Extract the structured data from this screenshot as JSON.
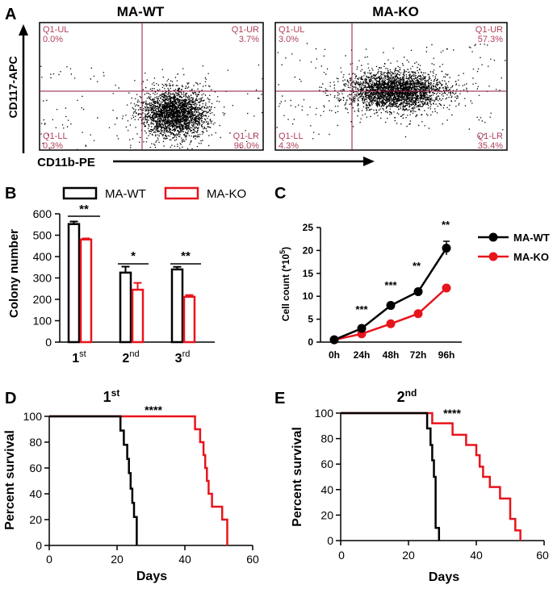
{
  "panel_letters": [
    "A",
    "B",
    "C",
    "D",
    "E"
  ],
  "colors": {
    "wt": "#000000",
    "ko": "#e8141c",
    "gate": "#8b1a3a",
    "quad_text": "#b0405a"
  },
  "chart_data": [
    {
      "panel": "A",
      "type": "scatter",
      "subtype": "flow-cytometry",
      "xlabel": "CD11b-PE",
      "ylabel": "CD117-APC",
      "plots": [
        {
          "title": "MA-WT",
          "quadrants": {
            "UL": {
              "label": "Q1-UL",
              "value": "0.0%"
            },
            "UR": {
              "label": "Q1-UR",
              "value": "3.7%"
            },
            "LL": {
              "label": "Q1-LL",
              "value": "0.3%"
            },
            "LR": {
              "label": "Q1-LR",
              "value": "96.0%"
            }
          }
        },
        {
          "title": "MA-KO",
          "quadrants": {
            "UL": {
              "label": "Q1-UL",
              "value": "3.0%"
            },
            "UR": {
              "label": "Q1-UR",
              "value": "57.3%"
            },
            "LL": {
              "label": "Q1-LL",
              "value": "4.3%"
            },
            "LR": {
              "label": "Q1-LR",
              "value": "35.4%"
            }
          }
        }
      ]
    },
    {
      "panel": "B",
      "type": "bar",
      "ylabel": "Colony number",
      "ylim": [
        0,
        600
      ],
      "yticks": [
        0,
        100,
        200,
        300,
        400,
        500,
        600
      ],
      "categories": [
        {
          "base": "1",
          "sup": "st"
        },
        {
          "base": "2",
          "sup": "nd"
        },
        {
          "base": "3",
          "sup": "rd"
        }
      ],
      "series": [
        {
          "name": "MA-WT",
          "values": [
            552,
            325,
            340
          ],
          "errors": [
            12,
            28,
            12
          ]
        },
        {
          "name": "MA-KO",
          "values": [
            480,
            245,
            212
          ],
          "errors": [
            5,
            32,
            8
          ]
        }
      ],
      "significance": [
        "**",
        "*",
        "**"
      ]
    },
    {
      "panel": "C",
      "type": "line",
      "ylabel_base": "Cell count (*10",
      "ylabel_sup": "5",
      "ylabel_end": ")",
      "categories": [
        "0h",
        "24h",
        "48h",
        "72h",
        "96h"
      ],
      "ylim": [
        0,
        25
      ],
      "yticks": [
        0,
        5,
        10,
        15,
        20,
        25
      ],
      "series": [
        {
          "name": "MA-WT",
          "values": [
            0.5,
            3.0,
            8.0,
            11.0,
            20.5
          ],
          "errors": [
            0.2,
            0.4,
            0.5,
            0.6,
            1.5
          ]
        },
        {
          "name": "MA-KO",
          "values": [
            0.5,
            1.8,
            4.0,
            6.2,
            11.8
          ],
          "errors": [
            0.2,
            0.3,
            0.4,
            0.5,
            0.6
          ]
        }
      ],
      "significance": [
        "",
        "***",
        "***",
        "**",
        "**"
      ]
    },
    {
      "panel": "D",
      "type": "line",
      "subtype": "survival",
      "title_base": "1",
      "title_sup": "st",
      "xlabel": "Days",
      "ylabel": "Percent survival",
      "xlim": [
        0,
        60
      ],
      "ylim": [
        0,
        100
      ],
      "xticks": [
        0,
        20,
        40,
        60
      ],
      "yticks": [
        0,
        20,
        40,
        60,
        80,
        100
      ],
      "significance": "****",
      "series": [
        {
          "name": "MA-WT",
          "points": [
            [
              0,
              100
            ],
            [
              21,
              100
            ],
            [
              21,
              89
            ],
            [
              22,
              89
            ],
            [
              22,
              78
            ],
            [
              23,
              78
            ],
            [
              23,
              67
            ],
            [
              23.5,
              67
            ],
            [
              23.5,
              56
            ],
            [
              24,
              56
            ],
            [
              24,
              44
            ],
            [
              24.5,
              44
            ],
            [
              24.5,
              33
            ],
            [
              25,
              33
            ],
            [
              25,
              22
            ],
            [
              25.8,
              22
            ],
            [
              25.8,
              0
            ]
          ]
        },
        {
          "name": "MA-KO",
          "points": [
            [
              0,
              100
            ],
            [
              43,
              100
            ],
            [
              43,
              90
            ],
            [
              44.5,
              90
            ],
            [
              44.5,
              80
            ],
            [
              45.5,
              80
            ],
            [
              45.5,
              70
            ],
            [
              46,
              70
            ],
            [
              46,
              60
            ],
            [
              46.5,
              60
            ],
            [
              46.5,
              50
            ],
            [
              47,
              50
            ],
            [
              47,
              40
            ],
            [
              48,
              40
            ],
            [
              48,
              30
            ],
            [
              51,
              30
            ],
            [
              51,
              20
            ],
            [
              52.5,
              20
            ],
            [
              52.5,
              0
            ]
          ]
        }
      ]
    },
    {
      "panel": "E",
      "type": "line",
      "subtype": "survival",
      "title_base": "2",
      "title_sup": "nd",
      "xlabel": "Days",
      "ylabel": "Percent survival",
      "xlim": [
        0,
        60
      ],
      "ylim": [
        0,
        100
      ],
      "xticks": [
        0,
        20,
        40,
        60
      ],
      "yticks": [
        0,
        20,
        40,
        60,
        80,
        100
      ],
      "significance": "****",
      "series": [
        {
          "name": "MA-WT",
          "points": [
            [
              0,
              100
            ],
            [
              25.5,
              100
            ],
            [
              25.5,
              88
            ],
            [
              26.5,
              88
            ],
            [
              26.5,
              75
            ],
            [
              27,
              75
            ],
            [
              27,
              63
            ],
            [
              27.5,
              63
            ],
            [
              27.5,
              50
            ],
            [
              28,
              50
            ],
            [
              28,
              10
            ],
            [
              29,
              10
            ],
            [
              29,
              0
            ]
          ]
        },
        {
          "name": "MA-KO",
          "points": [
            [
              0,
              100
            ],
            [
              27,
              100
            ],
            [
              27,
              92
            ],
            [
              33,
              92
            ],
            [
              33,
              83
            ],
            [
              37,
              83
            ],
            [
              37,
              75
            ],
            [
              40,
              75
            ],
            [
              40,
              67
            ],
            [
              41,
              67
            ],
            [
              41,
              58
            ],
            [
              42,
              58
            ],
            [
              42,
              50
            ],
            [
              44,
              50
            ],
            [
              44,
              42
            ],
            [
              47,
              42
            ],
            [
              47,
              33
            ],
            [
              50,
              33
            ],
            [
              50,
              17
            ],
            [
              51.5,
              17
            ],
            [
              51.5,
              8
            ],
            [
              53,
              8
            ],
            [
              53,
              0
            ]
          ]
        }
      ]
    }
  ]
}
